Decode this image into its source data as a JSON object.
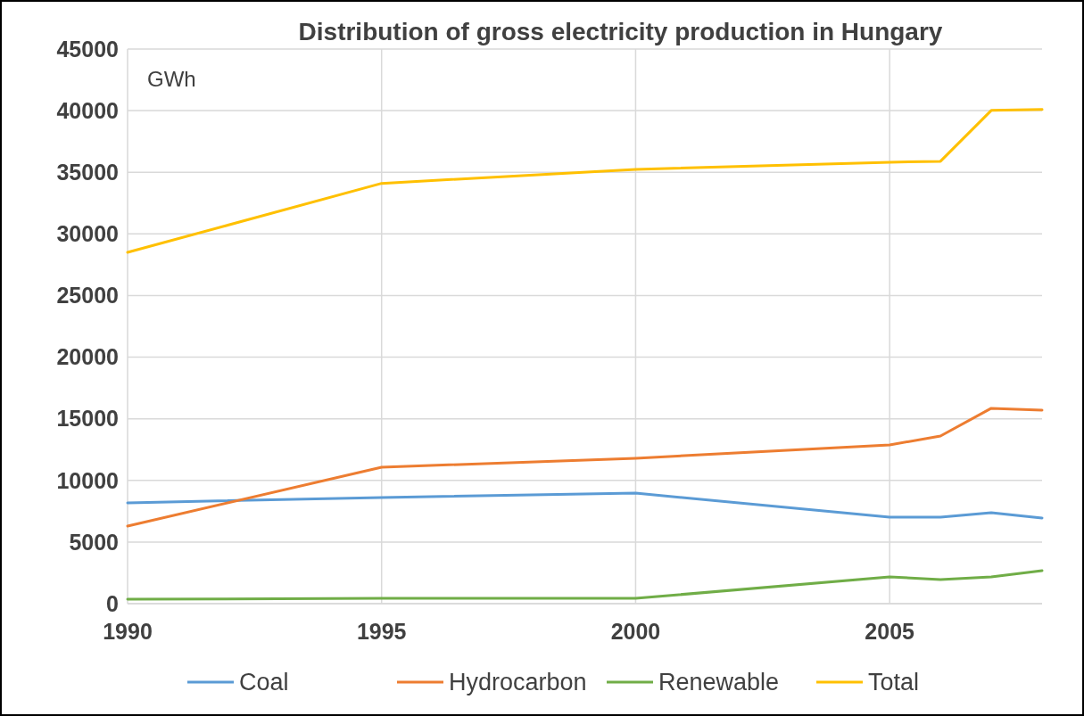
{
  "chart_data": {
    "type": "line",
    "title": "Distribution of gross electricity production in Hungary",
    "ylabel": "GWh",
    "x": [
      1990,
      1995,
      2000,
      2005,
      2006,
      2007,
      2008
    ],
    "series": [
      {
        "name": "Coal",
        "color": "#5b9bd5",
        "values": [
          8180,
          8610,
          8970,
          7020,
          7020,
          7380,
          6950
        ]
      },
      {
        "name": "Hydrocarbon",
        "color": "#ed7d31",
        "values": [
          6300,
          11070,
          11800,
          12880,
          13600,
          15850,
          15700
        ]
      },
      {
        "name": "Renewable",
        "color": "#70ad47",
        "values": [
          360,
          430,
          430,
          2170,
          1950,
          2170,
          2680
        ]
      },
      {
        "name": "Total",
        "color": "#ffc000",
        "values": [
          28500,
          34100,
          35240,
          35820,
          35890,
          40020,
          40090
        ]
      }
    ],
    "xlim": [
      1990,
      2008
    ],
    "xticks": [
      1990,
      1995,
      2000,
      2005
    ],
    "ylim": [
      0,
      45000
    ],
    "yticks": [
      0,
      5000,
      10000,
      15000,
      20000,
      25000,
      30000,
      35000,
      40000,
      45000
    ],
    "grid": true,
    "legend": "bottom",
    "marker": "none",
    "line_style": "solid"
  }
}
